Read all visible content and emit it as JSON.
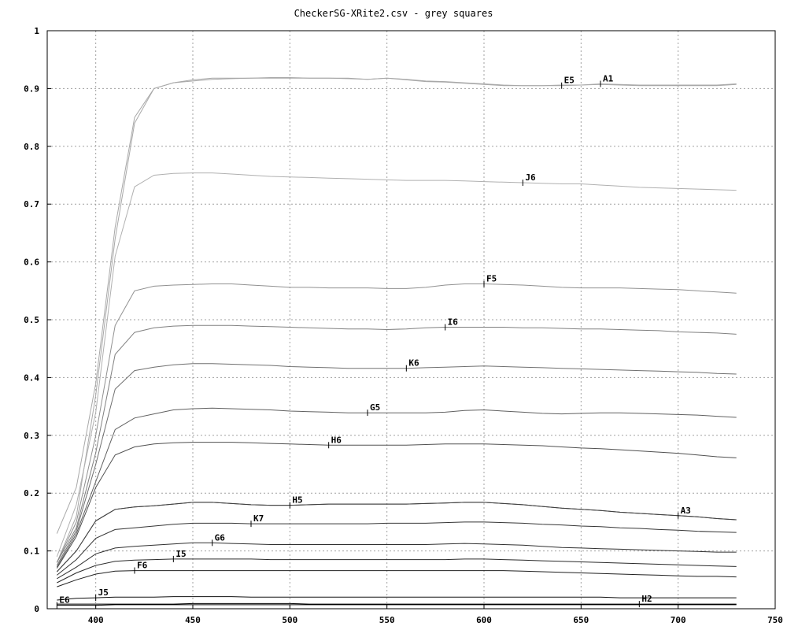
{
  "chart_data": {
    "type": "line",
    "title": "CheckerSG-XRite2.csv - grey squares",
    "xlim": [
      375,
      750
    ],
    "ylim": [
      0,
      1
    ],
    "xticks": [
      400,
      450,
      500,
      550,
      600,
      650,
      700,
      750
    ],
    "yticks": [
      0,
      0.1,
      0.2,
      0.3,
      0.4,
      0.5,
      0.6,
      0.7,
      0.8,
      0.9,
      1
    ],
    "grid": true,
    "legend": "none",
    "x": [
      380,
      390,
      400,
      410,
      420,
      430,
      440,
      450,
      460,
      470,
      480,
      490,
      500,
      510,
      520,
      530,
      540,
      550,
      560,
      570,
      580,
      590,
      600,
      610,
      620,
      630,
      640,
      650,
      660,
      670,
      680,
      690,
      700,
      710,
      720,
      730
    ],
    "series": [
      {
        "name": "A1",
        "label_x": 660,
        "color": "#a8a8a8",
        "values": [
          0.13,
          0.21,
          0.39,
          0.66,
          0.85,
          0.9,
          0.91,
          0.915,
          0.918,
          0.918,
          0.918,
          0.919,
          0.919,
          0.918,
          0.918,
          0.918,
          0.916,
          0.918,
          0.916,
          0.913,
          0.912,
          0.91,
          0.908,
          0.906,
          0.905,
          0.905,
          0.906,
          0.906,
          0.908,
          0.907,
          0.906,
          0.906,
          0.906,
          0.906,
          0.906,
          0.908
        ]
      },
      {
        "name": "E5",
        "label_x": 640,
        "color": "#a8a8a8",
        "values": [
          0.08,
          0.16,
          0.37,
          0.64,
          0.84,
          0.9,
          0.91,
          0.913,
          0.916,
          0.917,
          0.918,
          0.918,
          0.918,
          0.918,
          0.918,
          0.917,
          0.916,
          0.918,
          0.915,
          0.912,
          0.911,
          0.909,
          0.907,
          0.905,
          0.905,
          0.905,
          0.905,
          0.906,
          0.907,
          0.906,
          0.905,
          0.905,
          0.905,
          0.905,
          0.905,
          0.907
        ]
      },
      {
        "name": "J6",
        "label_x": 620,
        "color": "#b0b0b0",
        "values": [
          0.09,
          0.18,
          0.34,
          0.61,
          0.73,
          0.75,
          0.753,
          0.754,
          0.754,
          0.752,
          0.75,
          0.748,
          0.747,
          0.746,
          0.745,
          0.744,
          0.743,
          0.742,
          0.741,
          0.741,
          0.741,
          0.74,
          0.739,
          0.738,
          0.737,
          0.736,
          0.735,
          0.735,
          0.733,
          0.731,
          0.729,
          0.728,
          0.727,
          0.726,
          0.725,
          0.724
        ]
      },
      {
        "name": "F5",
        "label_x": 600,
        "color": "#909090",
        "values": [
          0.08,
          0.15,
          0.3,
          0.49,
          0.55,
          0.558,
          0.56,
          0.561,
          0.562,
          0.562,
          0.56,
          0.558,
          0.556,
          0.556,
          0.555,
          0.555,
          0.555,
          0.554,
          0.554,
          0.556,
          0.56,
          0.562,
          0.562,
          0.561,
          0.56,
          0.558,
          0.556,
          0.555,
          0.555,
          0.555,
          0.554,
          0.553,
          0.552,
          0.55,
          0.548,
          0.546
        ]
      },
      {
        "name": "I6",
        "label_x": 580,
        "color": "#808080",
        "values": [
          0.08,
          0.14,
          0.27,
          0.44,
          0.478,
          0.486,
          0.489,
          0.49,
          0.49,
          0.49,
          0.489,
          0.488,
          0.487,
          0.486,
          0.485,
          0.484,
          0.484,
          0.483,
          0.484,
          0.486,
          0.487,
          0.487,
          0.487,
          0.487,
          0.486,
          0.486,
          0.485,
          0.484,
          0.484,
          0.483,
          0.482,
          0.481,
          0.479,
          0.478,
          0.477,
          0.475
        ]
      },
      {
        "name": "K6",
        "label_x": 560,
        "color": "#707070",
        "values": [
          0.075,
          0.135,
          0.25,
          0.38,
          0.412,
          0.418,
          0.422,
          0.424,
          0.424,
          0.423,
          0.422,
          0.421,
          0.419,
          0.418,
          0.417,
          0.416,
          0.416,
          0.416,
          0.416,
          0.417,
          0.418,
          0.419,
          0.42,
          0.419,
          0.418,
          0.417,
          0.416,
          0.415,
          0.414,
          0.413,
          0.412,
          0.411,
          0.41,
          0.409,
          0.407,
          0.406
        ]
      },
      {
        "name": "G5",
        "label_x": 540,
        "color": "#606060",
        "values": [
          0.072,
          0.13,
          0.22,
          0.31,
          0.33,
          0.337,
          0.344,
          0.346,
          0.347,
          0.346,
          0.345,
          0.344,
          0.342,
          0.341,
          0.34,
          0.339,
          0.339,
          0.339,
          0.339,
          0.339,
          0.34,
          0.343,
          0.344,
          0.342,
          0.34,
          0.338,
          0.337,
          0.338,
          0.339,
          0.339,
          0.338,
          0.337,
          0.336,
          0.335,
          0.333,
          0.331
        ]
      },
      {
        "name": "H6",
        "label_x": 520,
        "color": "#505050",
        "values": [
          0.07,
          0.125,
          0.21,
          0.266,
          0.28,
          0.285,
          0.287,
          0.288,
          0.288,
          0.288,
          0.287,
          0.286,
          0.285,
          0.284,
          0.283,
          0.283,
          0.283,
          0.283,
          0.283,
          0.284,
          0.285,
          0.285,
          0.285,
          0.284,
          0.283,
          0.282,
          0.28,
          0.278,
          0.277,
          0.275,
          0.273,
          0.271,
          0.269,
          0.266,
          0.263,
          0.261
        ]
      },
      {
        "name": "H5",
        "label_x": 500,
        "color": "#404040",
        "values": [
          0.064,
          0.1,
          0.152,
          0.172,
          0.176,
          0.178,
          0.181,
          0.184,
          0.184,
          0.182,
          0.18,
          0.179,
          0.179,
          0.18,
          0.181,
          0.181,
          0.181,
          0.181,
          0.181,
          0.182,
          0.183,
          0.184,
          0.184,
          0.182,
          0.18,
          0.177,
          0.174,
          0.172,
          0.17,
          0.167,
          0.165,
          0.163,
          0.161,
          0.159,
          0.156,
          0.154
        ]
      },
      {
        "name": "A3",
        "label_x": 700,
        "color": "#404040",
        "values": [
          0.064,
          0.1,
          0.152,
          0.172,
          0.176,
          0.178,
          0.181,
          0.184,
          0.184,
          0.182,
          0.18,
          0.179,
          0.179,
          0.18,
          0.181,
          0.181,
          0.181,
          0.181,
          0.181,
          0.182,
          0.183,
          0.184,
          0.184,
          0.182,
          0.18,
          0.177,
          0.174,
          0.172,
          0.17,
          0.167,
          0.165,
          0.163,
          0.161,
          0.159,
          0.156,
          0.154
        ]
      },
      {
        "name": "K7",
        "label_x": 480,
        "color": "#353535",
        "values": [
          0.058,
          0.085,
          0.122,
          0.137,
          0.14,
          0.143,
          0.146,
          0.148,
          0.148,
          0.148,
          0.147,
          0.147,
          0.147,
          0.147,
          0.147,
          0.147,
          0.147,
          0.148,
          0.148,
          0.148,
          0.149,
          0.15,
          0.15,
          0.149,
          0.148,
          0.146,
          0.145,
          0.143,
          0.142,
          0.14,
          0.139,
          0.137,
          0.136,
          0.134,
          0.133,
          0.132
        ]
      },
      {
        "name": "G6",
        "label_x": 460,
        "color": "#303030",
        "values": [
          0.052,
          0.072,
          0.095,
          0.105,
          0.108,
          0.11,
          0.112,
          0.114,
          0.114,
          0.113,
          0.112,
          0.111,
          0.111,
          0.111,
          0.111,
          0.111,
          0.111,
          0.111,
          0.111,
          0.111,
          0.112,
          0.113,
          0.112,
          0.111,
          0.11,
          0.108,
          0.106,
          0.105,
          0.104,
          0.103,
          0.102,
          0.101,
          0.1,
          0.099,
          0.098,
          0.098
        ]
      },
      {
        "name": "I5",
        "label_x": 440,
        "color": "#2a2a2a",
        "values": [
          0.045,
          0.062,
          0.075,
          0.082,
          0.084,
          0.085,
          0.086,
          0.086,
          0.086,
          0.086,
          0.086,
          0.085,
          0.085,
          0.085,
          0.085,
          0.085,
          0.085,
          0.085,
          0.085,
          0.085,
          0.085,
          0.086,
          0.086,
          0.085,
          0.084,
          0.083,
          0.082,
          0.081,
          0.08,
          0.079,
          0.078,
          0.077,
          0.076,
          0.075,
          0.074,
          0.073
        ]
      },
      {
        "name": "F6",
        "label_x": 420,
        "color": "#202020",
        "values": [
          0.038,
          0.05,
          0.06,
          0.065,
          0.066,
          0.066,
          0.066,
          0.066,
          0.066,
          0.066,
          0.066,
          0.066,
          0.066,
          0.066,
          0.066,
          0.066,
          0.066,
          0.066,
          0.066,
          0.066,
          0.066,
          0.066,
          0.066,
          0.066,
          0.065,
          0.064,
          0.063,
          0.062,
          0.061,
          0.06,
          0.059,
          0.058,
          0.057,
          0.056,
          0.056,
          0.055
        ]
      },
      {
        "name": "J5",
        "label_x": 400,
        "color": "#101010",
        "values": [
          0.015,
          0.018,
          0.019,
          0.02,
          0.02,
          0.02,
          0.021,
          0.021,
          0.021,
          0.021,
          0.02,
          0.02,
          0.02,
          0.02,
          0.02,
          0.02,
          0.02,
          0.02,
          0.02,
          0.02,
          0.02,
          0.02,
          0.02,
          0.02,
          0.02,
          0.02,
          0.02,
          0.02,
          0.02,
          0.019,
          0.019,
          0.019,
          0.019,
          0.019,
          0.019,
          0.019
        ]
      },
      {
        "name": "H2",
        "label_x": 680,
        "color": "#000000",
        "values": [
          0.008,
          0.008,
          0.008,
          0.008,
          0.008,
          0.008,
          0.008,
          0.009,
          0.009,
          0.009,
          0.009,
          0.009,
          0.009,
          0.008,
          0.008,
          0.008,
          0.008,
          0.008,
          0.008,
          0.008,
          0.008,
          0.008,
          0.008,
          0.008,
          0.008,
          0.008,
          0.008,
          0.008,
          0.008,
          0.008,
          0.008,
          0.008,
          0.008,
          0.008,
          0.008,
          0.008
        ]
      },
      {
        "name": "E6",
        "label_x": 380,
        "color": "#000000",
        "values": [
          0.006,
          0.006,
          0.006,
          0.007,
          0.007,
          0.007,
          0.007,
          0.007,
          0.007,
          0.007,
          0.007,
          0.007,
          0.007,
          0.007,
          0.007,
          0.007,
          0.007,
          0.007,
          0.007,
          0.007,
          0.007,
          0.007,
          0.007,
          0.007,
          0.007,
          0.007,
          0.007,
          0.007,
          0.007,
          0.007,
          0.007,
          0.007,
          0.007,
          0.007,
          0.007,
          0.007
        ]
      }
    ]
  }
}
